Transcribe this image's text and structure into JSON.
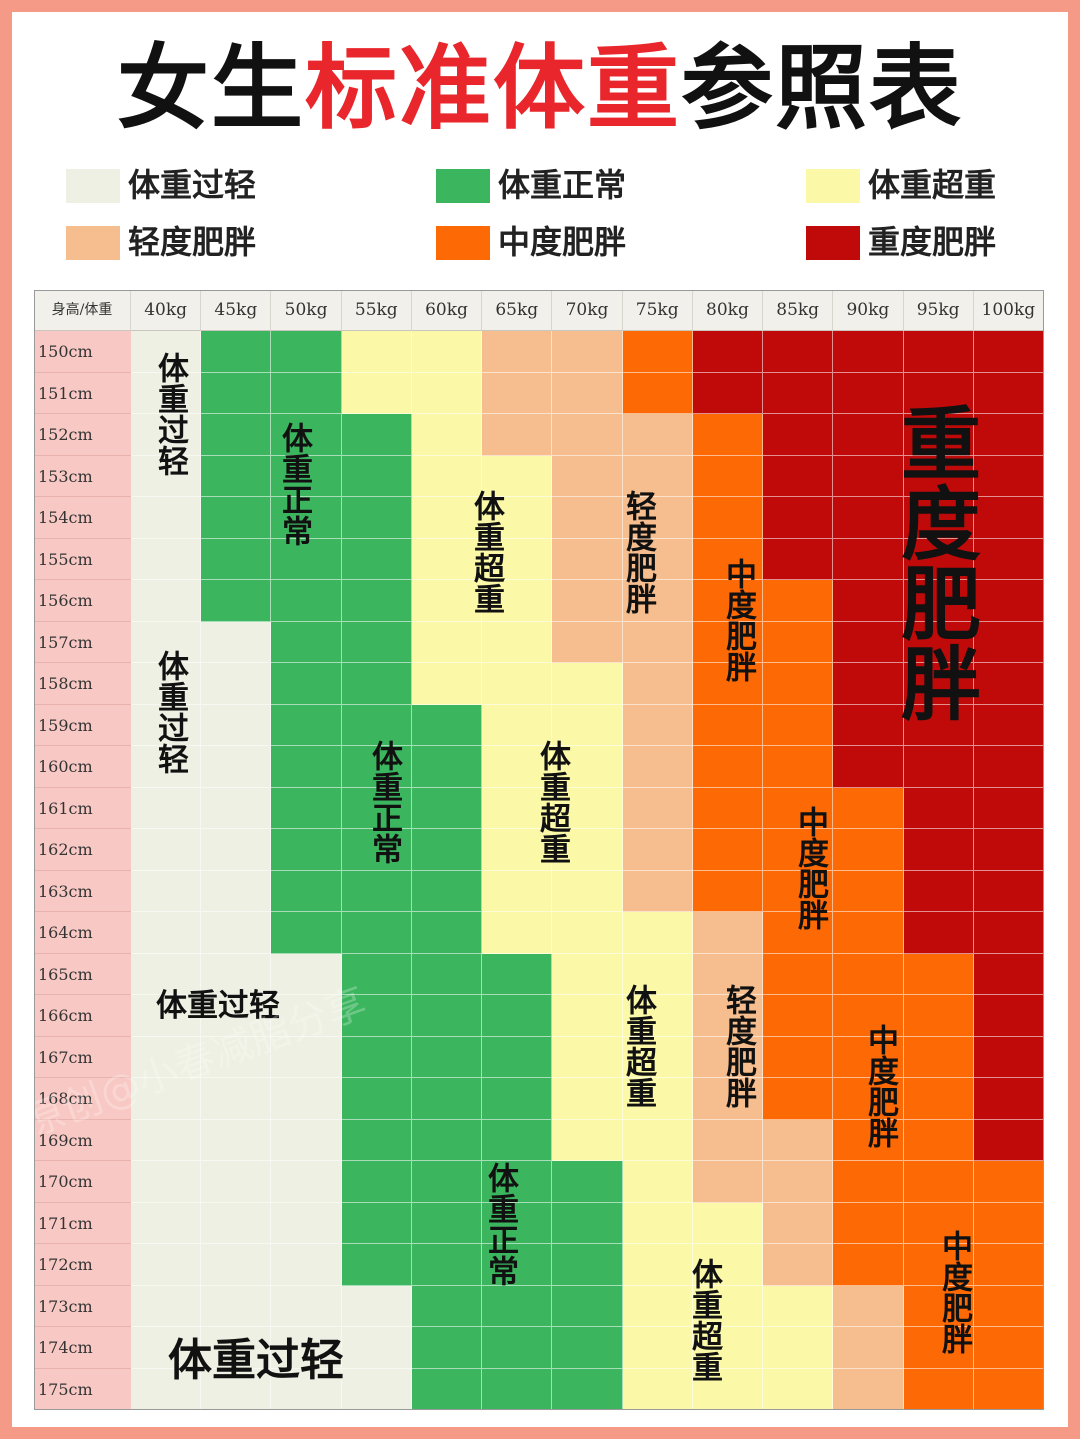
{
  "title": {
    "part1": "女生",
    "part2": "标准体重",
    "part3": "参照表"
  },
  "legend": [
    {
      "label": "体重过轻",
      "color": "#eef0e3"
    },
    {
      "label": "体重正常",
      "color": "#3cb55f"
    },
    {
      "label": "体重超重",
      "color": "#fbf9a8"
    },
    {
      "label": "轻度肥胖",
      "color": "#f6be8e"
    },
    {
      "label": "中度肥胖",
      "color": "#fd6a05"
    },
    {
      "label": "重度肥胖",
      "color": "#c00a0a"
    }
  ],
  "table": {
    "corner": "身高/体重",
    "weights": [
      "40kg",
      "45kg",
      "50kg",
      "55kg",
      "60kg",
      "65kg",
      "70kg",
      "75kg",
      "80kg",
      "85kg",
      "90kg",
      "95kg",
      "100kg"
    ],
    "heights": [
      "150cm",
      "151cm",
      "152cm",
      "153cm",
      "154cm",
      "155cm",
      "156cm",
      "157cm",
      "158cm",
      "159cm",
      "160cm",
      "161cm",
      "162cm",
      "163cm",
      "164cm",
      "165cm",
      "166cm",
      "167cm",
      "168cm",
      "169cm",
      "170cm",
      "171cm",
      "172cm",
      "173cm",
      "174cm",
      "175cm"
    ],
    "grid": [
      [
        0,
        1,
        1,
        2,
        2,
        3,
        3,
        4,
        5,
        5,
        5,
        5,
        5
      ],
      [
        0,
        1,
        1,
        2,
        2,
        3,
        3,
        4,
        5,
        5,
        5,
        5,
        5
      ],
      [
        0,
        1,
        1,
        1,
        2,
        3,
        3,
        3,
        4,
        5,
        5,
        5,
        5
      ],
      [
        0,
        1,
        1,
        1,
        2,
        2,
        3,
        3,
        4,
        5,
        5,
        5,
        5
      ],
      [
        0,
        1,
        1,
        1,
        2,
        2,
        3,
        3,
        4,
        5,
        5,
        5,
        5
      ],
      [
        0,
        1,
        1,
        1,
        2,
        2,
        3,
        3,
        4,
        5,
        5,
        5,
        5
      ],
      [
        0,
        1,
        1,
        1,
        2,
        2,
        3,
        3,
        4,
        4,
        5,
        5,
        5
      ],
      [
        0,
        0,
        1,
        1,
        2,
        2,
        3,
        3,
        4,
        4,
        5,
        5,
        5
      ],
      [
        0,
        0,
        1,
        1,
        2,
        2,
        2,
        3,
        4,
        4,
        5,
        5,
        5
      ],
      [
        0,
        0,
        1,
        1,
        1,
        2,
        2,
        3,
        4,
        4,
        5,
        5,
        5
      ],
      [
        0,
        0,
        1,
        1,
        1,
        2,
        2,
        3,
        4,
        4,
        5,
        5,
        5
      ],
      [
        0,
        0,
        1,
        1,
        1,
        2,
        2,
        3,
        4,
        4,
        4,
        5,
        5
      ],
      [
        0,
        0,
        1,
        1,
        1,
        2,
        2,
        3,
        4,
        4,
        4,
        5,
        5
      ],
      [
        0,
        0,
        1,
        1,
        1,
        2,
        2,
        3,
        4,
        4,
        4,
        5,
        5
      ],
      [
        0,
        0,
        1,
        1,
        1,
        2,
        2,
        2,
        3,
        4,
        4,
        5,
        5
      ],
      [
        0,
        0,
        0,
        1,
        1,
        1,
        2,
        2,
        3,
        4,
        4,
        4,
        5
      ],
      [
        0,
        0,
        0,
        1,
        1,
        1,
        2,
        2,
        3,
        4,
        4,
        4,
        5
      ],
      [
        0,
        0,
        0,
        1,
        1,
        1,
        2,
        2,
        3,
        4,
        4,
        4,
        5
      ],
      [
        0,
        0,
        0,
        1,
        1,
        1,
        2,
        2,
        3,
        4,
        4,
        4,
        5
      ],
      [
        0,
        0,
        0,
        1,
        1,
        1,
        2,
        2,
        3,
        3,
        4,
        4,
        5
      ],
      [
        0,
        0,
        0,
        1,
        1,
        1,
        1,
        2,
        3,
        3,
        4,
        4,
        4
      ],
      [
        0,
        0,
        0,
        1,
        1,
        1,
        1,
        2,
        2,
        3,
        4,
        4,
        4
      ],
      [
        0,
        0,
        0,
        1,
        1,
        1,
        1,
        2,
        2,
        3,
        4,
        4,
        4
      ],
      [
        0,
        0,
        0,
        0,
        1,
        1,
        1,
        2,
        2,
        2,
        3,
        4,
        4
      ],
      [
        0,
        0,
        0,
        0,
        1,
        1,
        1,
        2,
        2,
        2,
        3,
        4,
        4
      ],
      [
        0,
        0,
        0,
        0,
        1,
        1,
        1,
        2,
        2,
        2,
        3,
        4,
        4
      ]
    ]
  },
  "zone_labels": [
    {
      "text": "体重过轻"
    },
    {
      "text": "体重正常"
    },
    {
      "text": "体重超重"
    },
    {
      "text": "轻度肥胖"
    },
    {
      "text": "中度肥胖"
    },
    {
      "text": "重度肥胖"
    },
    {
      "text": "体重过轻"
    },
    {
      "text": "体重正常"
    },
    {
      "text": "体重超重"
    },
    {
      "text": "中度肥胖"
    },
    {
      "text": "体重过轻"
    },
    {
      "text": "体重超重"
    },
    {
      "text": "轻度肥胖"
    },
    {
      "text": "中度肥胖"
    },
    {
      "text": "体重正常"
    },
    {
      "text": "中度肥胖"
    },
    {
      "text": "体重超重"
    },
    {
      "text": "体重过轻"
    }
  ],
  "watermark": "原创@小春减脂分享"
}
